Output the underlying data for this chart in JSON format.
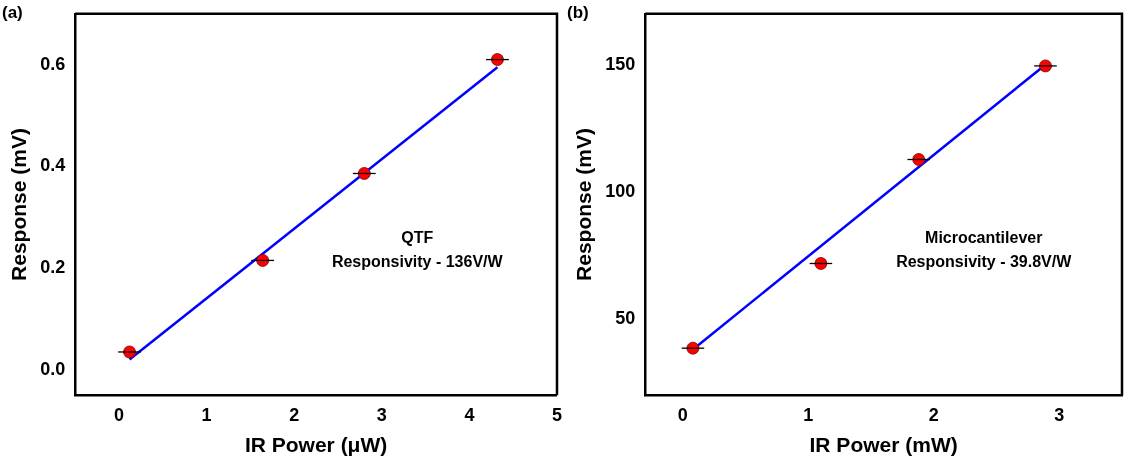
{
  "chart_data": [
    {
      "type": "scatter",
      "title": "(a)",
      "xlabel": "IR Power (μW)",
      "ylabel": "Response (mV)",
      "xlim": [
        -0.5,
        5
      ],
      "ylim": [
        -0.05,
        0.7
      ],
      "xticks": [
        0,
        1,
        2,
        3,
        4,
        5
      ],
      "yticks": [
        {
          "value": 0,
          "label": "0.0"
        },
        0.2,
        0.4,
        0.6
      ],
      "grid": false,
      "legend": false,
      "marker": "circle",
      "annotations": [
        "QTF",
        "Responsivity - 136V/W"
      ],
      "series": [
        {
          "color": "#ff0000",
          "x": [
            0.12,
            1.64,
            2.8,
            4.32
          ],
          "values": [
            0.035,
            0.215,
            0.386,
            0.61
          ],
          "xerrors": [
            0.13,
            0.13,
            0.13,
            0.13
          ]
        },
        {
          "type": "line",
          "marker": "none",
          "color": "#0000ff",
          "x": [
            0.12,
            4.32
          ],
          "values": [
            0.02,
            0.595
          ]
        }
      ]
    },
    {
      "type": "scatter",
      "title": "(b)",
      "xlabel": "IR Power (mW)",
      "ylabel": "Response (mV)",
      "xlim": [
        -0.3,
        3.5
      ],
      "ylim": [
        20,
        170
      ],
      "xticks": [
        0,
        1,
        2,
        3
      ],
      "yticks": [
        50,
        100,
        150
      ],
      "grid": false,
      "legend": false,
      "marker": "circle",
      "annotations": [
        "Microcantilever",
        "Responsivity - 39.8V/W"
      ],
      "series": [
        {
          "color": "#ff0000",
          "x": [
            0.08,
            1.1,
            1.88,
            2.89
          ],
          "values": [
            38.5,
            71.8,
            112.7,
            149.5
          ],
          "xerrors": [
            0.09,
            0.09,
            0.09,
            0.09
          ]
        },
        {
          "type": "line",
          "marker": "none",
          "color": "#0000ff",
          "x": [
            0.08,
            2.89
          ],
          "values": [
            38,
            150
          ]
        }
      ]
    }
  ]
}
